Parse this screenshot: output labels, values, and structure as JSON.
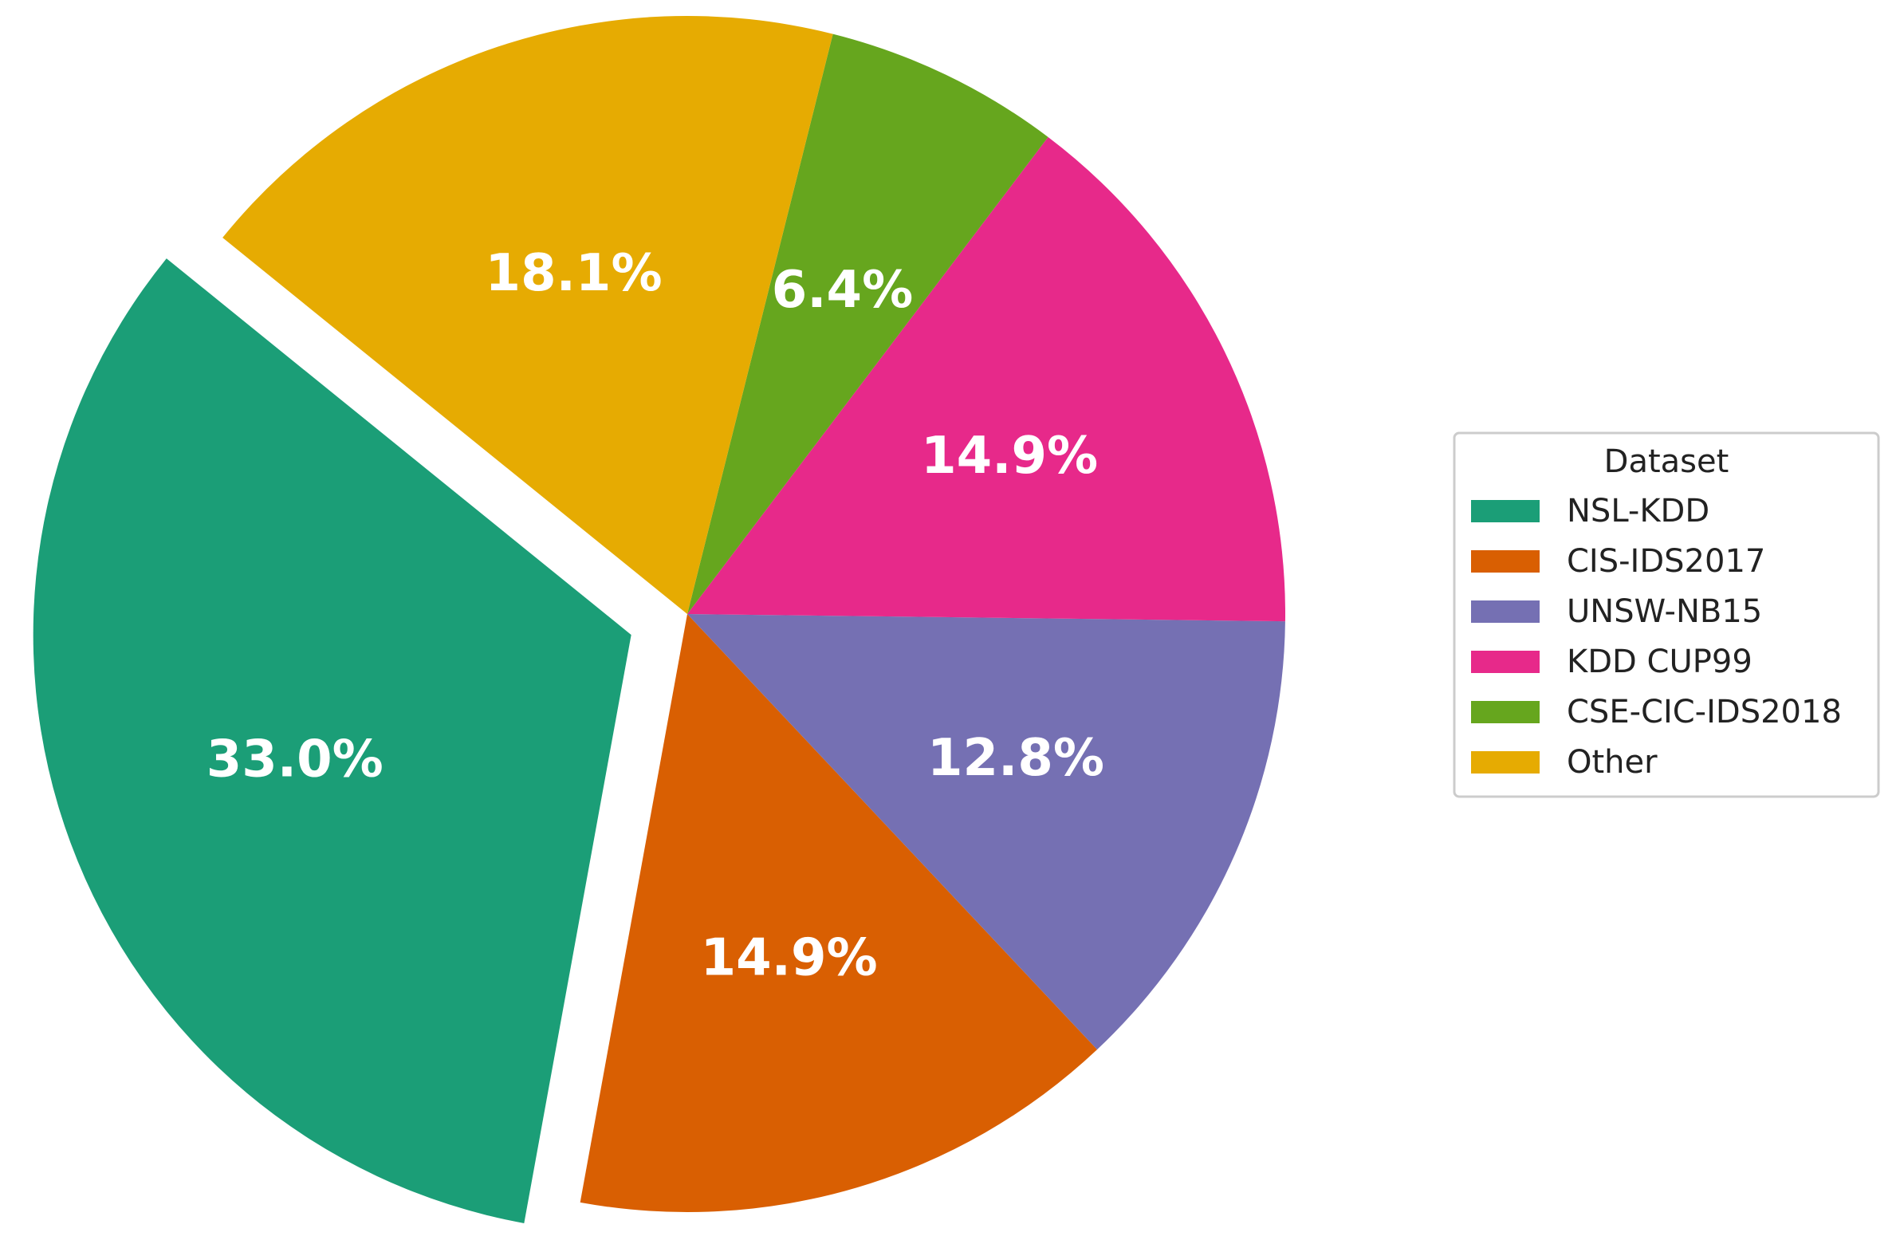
{
  "chart_data": {
    "type": "pie",
    "categories": [
      "NSL-KDD",
      "CIS-IDS2017",
      "UNSW-NB15",
      "KDD CUP99",
      "CSE-CIC-IDS2018",
      "Other"
    ],
    "values": [
      33.0,
      14.9,
      12.8,
      14.9,
      6.4,
      18.1
    ],
    "value_labels": [
      "33.0%",
      "14.9%",
      "12.8%",
      "14.9%",
      "6.4%",
      "18.1%"
    ],
    "colors": [
      "#1b9e77",
      "#d95f02",
      "#7570b3",
      "#e7298a",
      "#66a61e",
      "#e6ab02"
    ],
    "exploded": [
      "NSL-KDD"
    ],
    "direction": "counterclockwise",
    "legend": {
      "title": "Dataset",
      "placement": "center-right",
      "entries": [
        "NSL-KDD",
        "CIS-IDS2017",
        "UNSW-NB15",
        "KDD CUP99",
        "CSE-CIC-IDS2018",
        "Other"
      ]
    }
  }
}
